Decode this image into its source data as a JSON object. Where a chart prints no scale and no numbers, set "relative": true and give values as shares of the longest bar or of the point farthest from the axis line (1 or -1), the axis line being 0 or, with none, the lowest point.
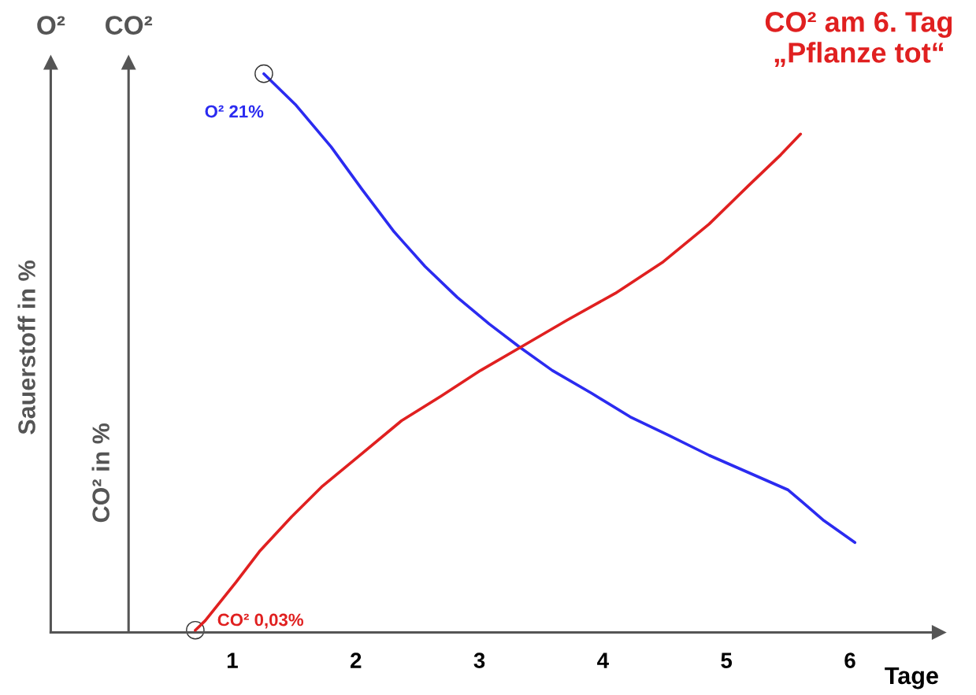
{
  "chart_data": {
    "type": "line",
    "title": "CO² am 6. Tag\n„Pflanze tot“",
    "xlabel": "Tage",
    "ylabel": "Sauerstoff in %",
    "y2label": "CO² in %",
    "relative": true,
    "tick_labels": "x",
    "xlim": [
      -0.47,
      6.72
    ],
    "xticks": [
      1,
      2,
      3,
      4,
      5,
      6
    ],
    "series": [
      {
        "color": "#2b2bf0",
        "x": [
          1.255,
          1.51,
          1.8,
          2.05,
          2.31,
          2.56,
          2.82,
          3.08,
          3.33,
          3.59,
          3.91,
          4.22,
          4.54,
          4.86,
          5.18,
          5.5,
          5.79,
          6.04
        ],
        "values": [
          1.0,
          0.945,
          0.869,
          0.793,
          0.717,
          0.655,
          0.6,
          0.552,
          0.51,
          0.469,
          0.428,
          0.386,
          0.352,
          0.317,
          0.286,
          0.255,
          0.2,
          0.161
        ]
      },
      {
        "color": "#e02020",
        "axis": "y2",
        "x": [
          0.7,
          0.78,
          1.03,
          1.22,
          1.48,
          1.73,
          2.01,
          2.37,
          2.69,
          3.01,
          3.33,
          3.71,
          4.1,
          4.48,
          4.86,
          5.18,
          5.44,
          5.6
        ],
        "values": [
          0.004,
          0.021,
          0.09,
          0.145,
          0.207,
          0.262,
          0.313,
          0.379,
          0.423,
          0.469,
          0.51,
          0.559,
          0.607,
          0.662,
          0.731,
          0.8,
          0.855,
          0.892
        ]
      }
    ],
    "ref_lines": [
      {
        "axis": "x",
        "value": 0.16,
        "label": "CO²",
        "color": "#555555"
      }
    ],
    "annotations": [
      "O²",
      {
        "text": "O² 21%",
        "x": 1.255,
        "y": 1.0
      },
      {
        "text": "CO² 0,03%",
        "x": 0.7,
        "y": 0.004
      }
    ]
  }
}
